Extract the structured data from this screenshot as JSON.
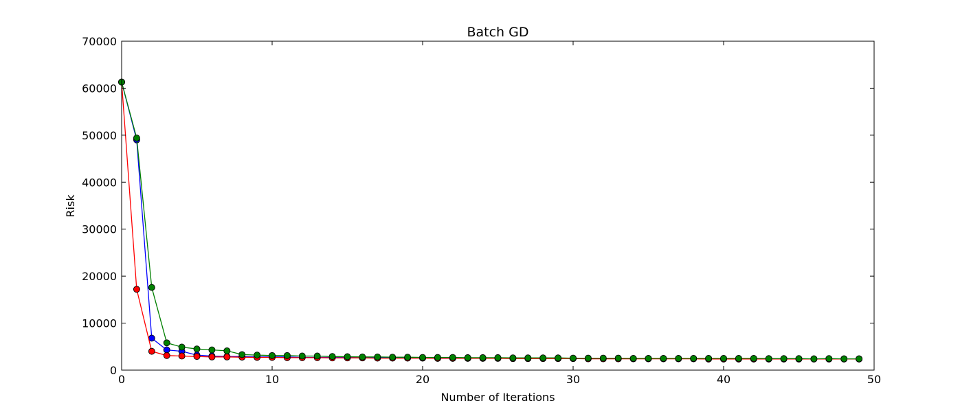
{
  "chart_data": {
    "type": "line",
    "title": "Batch GD",
    "xlabel": "Number of Iterations",
    "ylabel": "Risk",
    "xlim": [
      0,
      50
    ],
    "ylim": [
      0,
      70000
    ],
    "xticks": [
      "0",
      "10",
      "20",
      "30",
      "40",
      "50"
    ],
    "yticks": [
      "0",
      "10000",
      "20000",
      "30000",
      "40000",
      "50000",
      "60000",
      "70000"
    ],
    "grid": false,
    "legend": "none",
    "series": [
      {
        "color": "#0000ff",
        "x": [
          0,
          1,
          2,
          3,
          4,
          5,
          6,
          7,
          8,
          9,
          10,
          11,
          12,
          13,
          14,
          15,
          16,
          17,
          18,
          19,
          20,
          21,
          22,
          23,
          24,
          25,
          26,
          27,
          28,
          29,
          30,
          31,
          32,
          33,
          34,
          35,
          36,
          37,
          38,
          39,
          40,
          41,
          42,
          43,
          44,
          45,
          46,
          47,
          48,
          49
        ],
        "y": [
          61300,
          49000,
          6800,
          4300,
          4000,
          3200,
          3000,
          2900,
          2900,
          2800,
          2800,
          2800,
          2700,
          2700,
          2700,
          2700,
          2650,
          2650,
          2650,
          2600,
          2600,
          2600,
          2600,
          2550,
          2550,
          2550,
          2550,
          2500,
          2500,
          2500,
          2500,
          2500,
          2500,
          2450,
          2450,
          2450,
          2450,
          2450,
          2450,
          2450,
          2400,
          2400,
          2400,
          2400,
          2400,
          2400,
          2400,
          2400,
          2400,
          2400
        ]
      },
      {
        "color": "#ff0000",
        "x": [
          0,
          1,
          2,
          3,
          4,
          5,
          6,
          7,
          8,
          9,
          10,
          11,
          12,
          13,
          14,
          15,
          16,
          17,
          18,
          19,
          20,
          21,
          22,
          23,
          24,
          25,
          26,
          27,
          28,
          29,
          30,
          31,
          32,
          33,
          34,
          35,
          36,
          37,
          38,
          39,
          40,
          41,
          42,
          43,
          44,
          45,
          46,
          47,
          48,
          49
        ],
        "y": [
          61300,
          17200,
          4000,
          3100,
          3000,
          2900,
          2800,
          2800,
          2750,
          2700,
          2700,
          2650,
          2650,
          2650,
          2600,
          2600,
          2600,
          2550,
          2550,
          2550,
          2550,
          2500,
          2500,
          2500,
          2500,
          2500,
          2450,
          2450,
          2450,
          2450,
          2450,
          2400,
          2400,
          2400,
          2400,
          2400,
          2400,
          2400,
          2400,
          2350,
          2350,
          2350,
          2350,
          2350,
          2350,
          2350,
          2350,
          2350,
          2350,
          2350
        ]
      },
      {
        "color": "#008000",
        "x": [
          0,
          1,
          2,
          3,
          4,
          5,
          6,
          7,
          8,
          9,
          10,
          11,
          12,
          13,
          14,
          15,
          16,
          17,
          18,
          19,
          20,
          21,
          22,
          23,
          24,
          25,
          26,
          27,
          28,
          29,
          30,
          31,
          32,
          33,
          34,
          35,
          36,
          37,
          38,
          39,
          40,
          41,
          42,
          43,
          44,
          45,
          46,
          47,
          48,
          49
        ],
        "y": [
          61300,
          49400,
          17600,
          5800,
          4900,
          4500,
          4300,
          4100,
          3300,
          3200,
          3100,
          3100,
          3000,
          3000,
          2900,
          2850,
          2800,
          2800,
          2750,
          2750,
          2700,
          2700,
          2700,
          2650,
          2650,
          2650,
          2600,
          2600,
          2600,
          2600,
          2550,
          2550,
          2550,
          2550,
          2500,
          2500,
          2500,
          2500,
          2500,
          2500,
          2500,
          2500,
          2500,
          2450,
          2450,
          2450,
          2400,
          2450,
          2400,
          2400
        ]
      }
    ]
  }
}
